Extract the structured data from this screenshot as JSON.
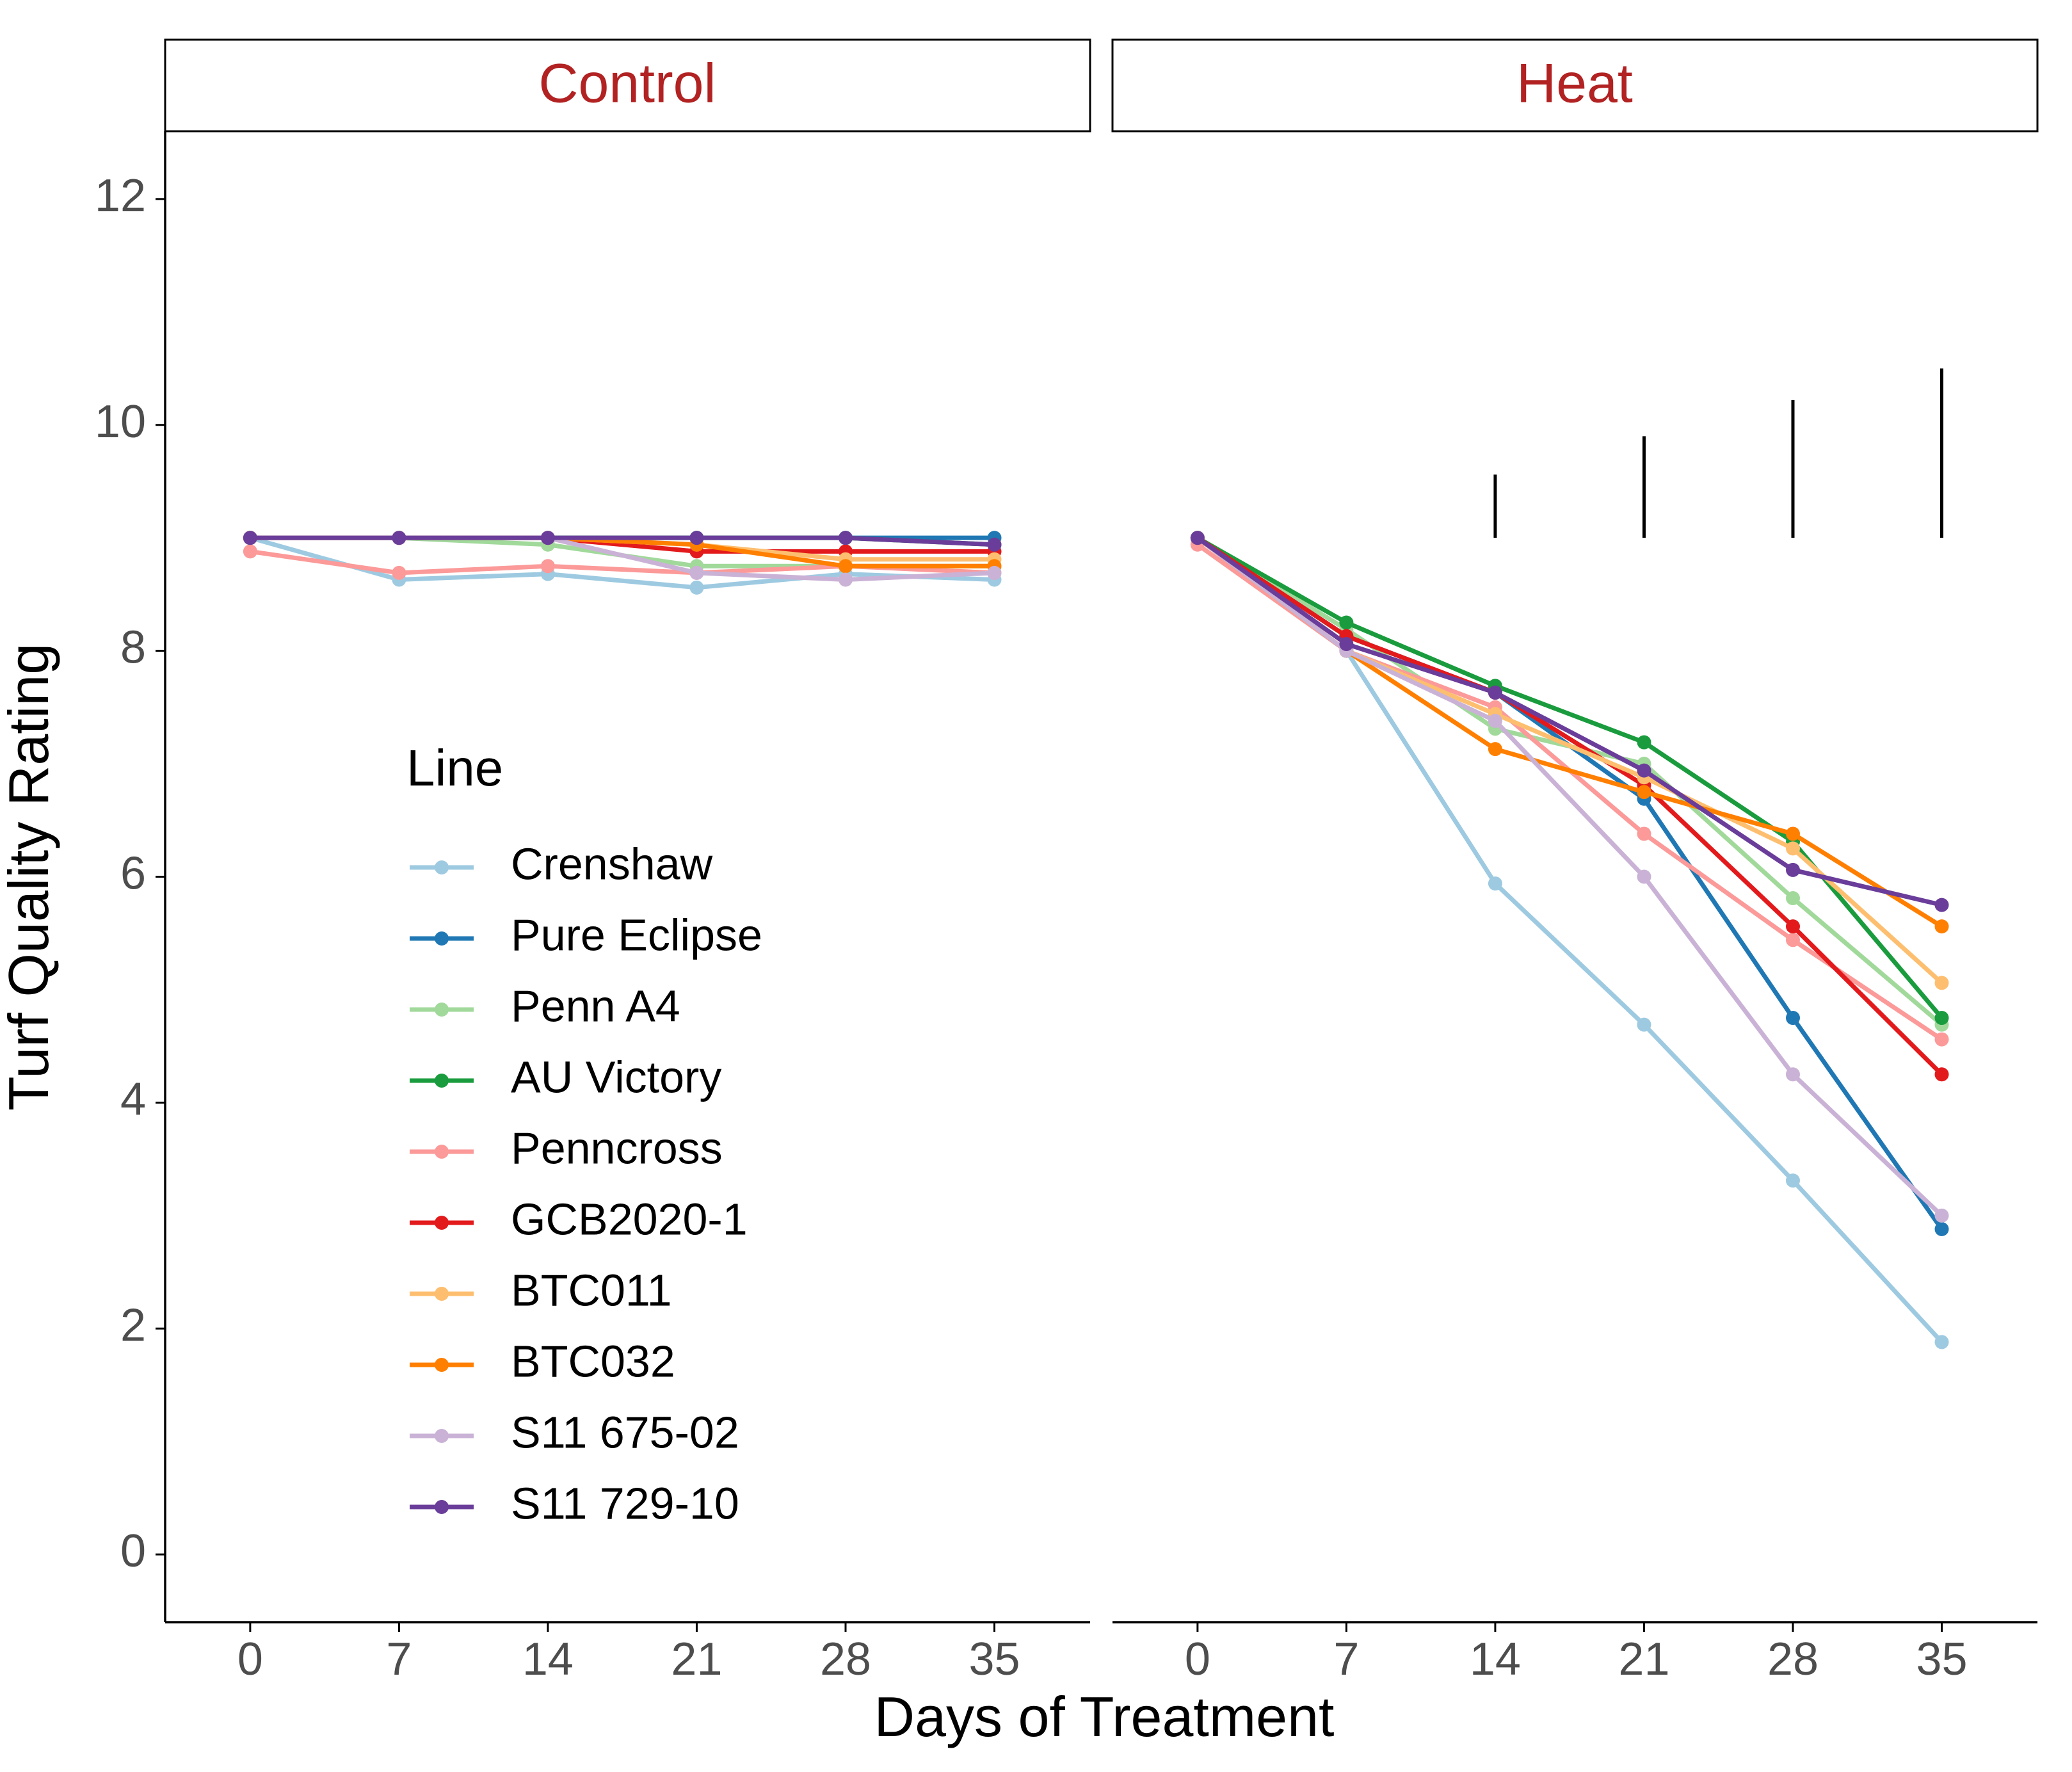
{
  "chart_data": {
    "type": "line",
    "xlabel": "Days of Treatment",
    "ylabel": "Turf Quality Rating",
    "x": [
      0,
      7,
      14,
      21,
      28,
      35
    ],
    "xticks": [
      "0",
      "7",
      "14",
      "21",
      "28",
      "35"
    ],
    "yticks": [
      "0",
      "2",
      "4",
      "6",
      "8",
      "10",
      "12"
    ],
    "xlim": [
      -4,
      39.5
    ],
    "ylim": [
      -0.6,
      12.6
    ],
    "legend": {
      "title": "Line",
      "position": "inside-left"
    },
    "panels": [
      {
        "label": "Control",
        "series": [
          {
            "name": "Crenshaw",
            "color": "#9ecae1",
            "values": [
              9.0,
              8.63,
              8.68,
              8.56,
              8.68,
              8.63
            ]
          },
          {
            "name": "Pure Eclipse",
            "color": "#1f78b4",
            "values": [
              9.0,
              9.0,
              9.0,
              9.0,
              9.0,
              9.0
            ]
          },
          {
            "name": "Penn A4",
            "color": "#a1d99b",
            "values": [
              9.0,
              9.0,
              8.94,
              8.75,
              8.75,
              8.75
            ]
          },
          {
            "name": "AU Victory",
            "color": "#1a9c3e",
            "values": [
              9.0,
              9.0,
              9.0,
              9.0,
              9.0,
              8.94
            ]
          },
          {
            "name": "Penncross",
            "color": "#fb9a99",
            "values": [
              8.88,
              8.69,
              8.75,
              8.69,
              8.75,
              8.69
            ]
          },
          {
            "name": "GCB2020-1",
            "color": "#e31a1c",
            "values": [
              9.0,
              9.0,
              9.0,
              8.88,
              8.88,
              8.88
            ]
          },
          {
            "name": "BTC011",
            "color": "#fdbf6f",
            "values": [
              9.0,
              9.0,
              9.0,
              8.94,
              8.81,
              8.81
            ]
          },
          {
            "name": "BTC032",
            "color": "#ff7f00",
            "values": [
              9.0,
              9.0,
              9.0,
              8.94,
              8.75,
              8.75
            ]
          },
          {
            "name": "S11 675-02",
            "color": "#cab2d6",
            "values": [
              9.0,
              9.0,
              9.0,
              8.69,
              8.63,
              8.69
            ]
          },
          {
            "name": "S11 729-10",
            "color": "#6a3d9a",
            "values": [
              9.0,
              9.0,
              9.0,
              9.0,
              9.0,
              8.94
            ]
          }
        ],
        "error_bars": []
      },
      {
        "label": "Heat",
        "series": [
          {
            "name": "Crenshaw",
            "color": "#9ecae1",
            "values": [
              9.0,
              8.0,
              5.94,
              4.69,
              3.31,
              1.88
            ]
          },
          {
            "name": "Pure Eclipse",
            "color": "#1f78b4",
            "values": [
              9.0,
              8.13,
              7.63,
              6.69,
              4.75,
              2.88
            ]
          },
          {
            "name": "Penn A4",
            "color": "#a1d99b",
            "values": [
              9.0,
              8.19,
              7.31,
              7.0,
              5.81,
              4.69
            ]
          },
          {
            "name": "AU Victory",
            "color": "#1a9c3e",
            "values": [
              9.0,
              8.25,
              7.69,
              7.19,
              6.31,
              4.75
            ]
          },
          {
            "name": "Penncross",
            "color": "#fb9a99",
            "values": [
              8.94,
              8.0,
              7.5,
              6.38,
              5.44,
              4.56
            ]
          },
          {
            "name": "GCB2020-1",
            "color": "#e31a1c",
            "values": [
              9.0,
              8.13,
              7.63,
              6.81,
              5.56,
              4.25
            ]
          },
          {
            "name": "BTC011",
            "color": "#fdbf6f",
            "values": [
              9.0,
              8.0,
              7.44,
              6.88,
              6.25,
              5.06
            ]
          },
          {
            "name": "BTC032",
            "color": "#ff7f00",
            "values": [
              9.0,
              8.0,
              7.13,
              6.75,
              6.38,
              5.56
            ]
          },
          {
            "name": "S11 675-02",
            "color": "#cab2d6",
            "values": [
              9.0,
              8.0,
              7.38,
              6.0,
              4.25,
              3.0
            ]
          },
          {
            "name": "S11 729-10",
            "color": "#6a3d9a",
            "values": [
              9.0,
              8.06,
              7.63,
              6.94,
              6.06,
              5.75
            ]
          }
        ],
        "error_bars": [
          {
            "x": 14,
            "low": 9.0,
            "high": 9.56
          },
          {
            "x": 21,
            "low": 9.0,
            "high": 9.9
          },
          {
            "x": 28,
            "low": 9.0,
            "high": 10.22
          },
          {
            "x": 35,
            "low": 9.0,
            "high": 10.5
          }
        ]
      }
    ]
  }
}
